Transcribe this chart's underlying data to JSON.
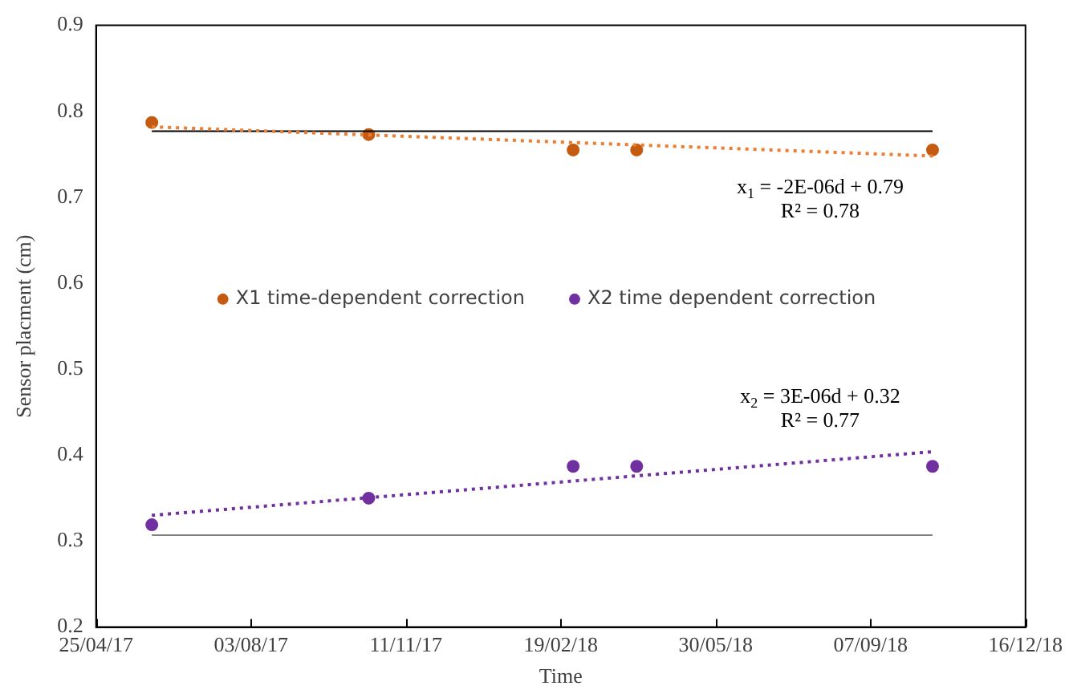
{
  "chart_data": {
    "type": "scatter",
    "xlabel": "Time",
    "ylabel": "Sensor placment (cm)",
    "xlim": [
      "2017-04-25",
      "2018-12-16"
    ],
    "xticks": [
      {
        "value": "2017-04-25",
        "label": "25/04/17"
      },
      {
        "value": "2017-08-03",
        "label": "03/08/17"
      },
      {
        "value": "2017-11-11",
        "label": "11/11/17"
      },
      {
        "value": "2018-02-19",
        "label": "19/02/18"
      },
      {
        "value": "2018-05-30",
        "label": "30/05/18"
      },
      {
        "value": "2018-09-07",
        "label": "07/09/18"
      },
      {
        "value": "2018-12-16",
        "label": "16/12/18"
      }
    ],
    "ylim": [
      0.2,
      0.9
    ],
    "yticks": [
      0.2,
      0.3,
      0.4,
      0.5,
      0.6,
      0.7,
      0.8,
      0.9
    ],
    "grid": false,
    "legend": "left",
    "marker": "circle",
    "series": [
      {
        "name": "X1 time-dependent correction",
        "type": "scatter",
        "color": "#c55a11",
        "x": [
          "2017-05-31",
          "2017-10-18",
          "2018-02-27",
          "2018-04-09",
          "2018-10-17"
        ],
        "values": [
          0.787,
          0.773,
          0.755,
          0.755,
          0.755
        ]
      },
      {
        "name": "X2 time dependent correction",
        "type": "scatter",
        "color": "#7030a0",
        "x": [
          "2017-05-31",
          "2017-10-18",
          "2018-02-27",
          "2018-04-09",
          "2018-10-17"
        ],
        "values": [
          0.319,
          0.35,
          0.387,
          0.387,
          0.387
        ]
      },
      {
        "type": "line",
        "marker": "none",
        "line_style": "dotted",
        "color": "#ed7d31",
        "x": [
          "2017-05-31",
          "2018-10-17"
        ],
        "values": [
          0.782,
          0.748
        ]
      },
      {
        "type": "line",
        "marker": "none",
        "line_style": "dotted",
        "color": "#7030a0",
        "x": [
          "2017-05-31",
          "2018-10-17"
        ],
        "values": [
          0.33,
          0.404
        ]
      },
      {
        "type": "line",
        "marker": "none",
        "line_style": "solid",
        "color": "#000000",
        "x": [
          "2017-05-31",
          "2018-10-17"
        ],
        "values": [
          0.777,
          0.777
        ]
      },
      {
        "type": "line",
        "marker": "none",
        "line_style": "solid",
        "color": "#7f7f7f",
        "x": [
          "2017-05-31",
          "2018-10-17"
        ],
        "values": [
          0.307,
          0.307
        ]
      }
    ],
    "annotations": [
      "x$_{1}$ = -2E-06d + 0.79",
      "R² = 0.78",
      "x$_{2}$ = 3E-06d + 0.32",
      "R² = 0.77"
    ]
  }
}
